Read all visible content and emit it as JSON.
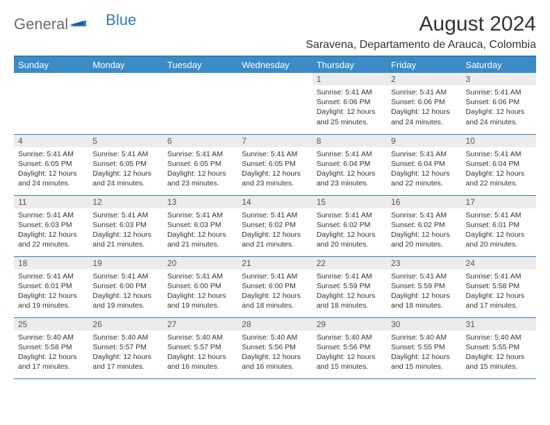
{
  "brand": {
    "general": "General",
    "blue": "Blue"
  },
  "title": "August 2024",
  "location": "Saravena, Departamento de Arauca, Colombia",
  "colors": {
    "header_bg": "#3b8bc6",
    "header_text": "#ffffff",
    "border": "#2f7bbf",
    "daynum_bg": "#ececec",
    "daynum_text": "#555555",
    "body_text": "#333333",
    "logo_gray": "#6d6d6d",
    "logo_blue": "#2f7bbf",
    "page_bg": "#ffffff"
  },
  "fonts": {
    "title_size_pt": 22,
    "location_size_pt": 12,
    "header_size_pt": 10,
    "daynum_size_pt": 9,
    "body_size_pt": 8
  },
  "weekdays": [
    "Sunday",
    "Monday",
    "Tuesday",
    "Wednesday",
    "Thursday",
    "Friday",
    "Saturday"
  ],
  "weeks": [
    [
      {
        "n": "",
        "sr": "",
        "ss": "",
        "dl": ""
      },
      {
        "n": "",
        "sr": "",
        "ss": "",
        "dl": ""
      },
      {
        "n": "",
        "sr": "",
        "ss": "",
        "dl": ""
      },
      {
        "n": "",
        "sr": "",
        "ss": "",
        "dl": ""
      },
      {
        "n": "1",
        "sr": "Sunrise: 5:41 AM",
        "ss": "Sunset: 6:06 PM",
        "dl": "Daylight: 12 hours and 25 minutes."
      },
      {
        "n": "2",
        "sr": "Sunrise: 5:41 AM",
        "ss": "Sunset: 6:06 PM",
        "dl": "Daylight: 12 hours and 24 minutes."
      },
      {
        "n": "3",
        "sr": "Sunrise: 5:41 AM",
        "ss": "Sunset: 6:06 PM",
        "dl": "Daylight: 12 hours and 24 minutes."
      }
    ],
    [
      {
        "n": "4",
        "sr": "Sunrise: 5:41 AM",
        "ss": "Sunset: 6:05 PM",
        "dl": "Daylight: 12 hours and 24 minutes."
      },
      {
        "n": "5",
        "sr": "Sunrise: 5:41 AM",
        "ss": "Sunset: 6:05 PM",
        "dl": "Daylight: 12 hours and 24 minutes."
      },
      {
        "n": "6",
        "sr": "Sunrise: 5:41 AM",
        "ss": "Sunset: 6:05 PM",
        "dl": "Daylight: 12 hours and 23 minutes."
      },
      {
        "n": "7",
        "sr": "Sunrise: 5:41 AM",
        "ss": "Sunset: 6:05 PM",
        "dl": "Daylight: 12 hours and 23 minutes."
      },
      {
        "n": "8",
        "sr": "Sunrise: 5:41 AM",
        "ss": "Sunset: 6:04 PM",
        "dl": "Daylight: 12 hours and 23 minutes."
      },
      {
        "n": "9",
        "sr": "Sunrise: 5:41 AM",
        "ss": "Sunset: 6:04 PM",
        "dl": "Daylight: 12 hours and 22 minutes."
      },
      {
        "n": "10",
        "sr": "Sunrise: 5:41 AM",
        "ss": "Sunset: 6:04 PM",
        "dl": "Daylight: 12 hours and 22 minutes."
      }
    ],
    [
      {
        "n": "11",
        "sr": "Sunrise: 5:41 AM",
        "ss": "Sunset: 6:03 PM",
        "dl": "Daylight: 12 hours and 22 minutes."
      },
      {
        "n": "12",
        "sr": "Sunrise: 5:41 AM",
        "ss": "Sunset: 6:03 PM",
        "dl": "Daylight: 12 hours and 21 minutes."
      },
      {
        "n": "13",
        "sr": "Sunrise: 5:41 AM",
        "ss": "Sunset: 6:03 PM",
        "dl": "Daylight: 12 hours and 21 minutes."
      },
      {
        "n": "14",
        "sr": "Sunrise: 5:41 AM",
        "ss": "Sunset: 6:02 PM",
        "dl": "Daylight: 12 hours and 21 minutes."
      },
      {
        "n": "15",
        "sr": "Sunrise: 5:41 AM",
        "ss": "Sunset: 6:02 PM",
        "dl": "Daylight: 12 hours and 20 minutes."
      },
      {
        "n": "16",
        "sr": "Sunrise: 5:41 AM",
        "ss": "Sunset: 6:02 PM",
        "dl": "Daylight: 12 hours and 20 minutes."
      },
      {
        "n": "17",
        "sr": "Sunrise: 5:41 AM",
        "ss": "Sunset: 6:01 PM",
        "dl": "Daylight: 12 hours and 20 minutes."
      }
    ],
    [
      {
        "n": "18",
        "sr": "Sunrise: 5:41 AM",
        "ss": "Sunset: 6:01 PM",
        "dl": "Daylight: 12 hours and 19 minutes."
      },
      {
        "n": "19",
        "sr": "Sunrise: 5:41 AM",
        "ss": "Sunset: 6:00 PM",
        "dl": "Daylight: 12 hours and 19 minutes."
      },
      {
        "n": "20",
        "sr": "Sunrise: 5:41 AM",
        "ss": "Sunset: 6:00 PM",
        "dl": "Daylight: 12 hours and 19 minutes."
      },
      {
        "n": "21",
        "sr": "Sunrise: 5:41 AM",
        "ss": "Sunset: 6:00 PM",
        "dl": "Daylight: 12 hours and 18 minutes."
      },
      {
        "n": "22",
        "sr": "Sunrise: 5:41 AM",
        "ss": "Sunset: 5:59 PM",
        "dl": "Daylight: 12 hours and 18 minutes."
      },
      {
        "n": "23",
        "sr": "Sunrise: 5:41 AM",
        "ss": "Sunset: 5:59 PM",
        "dl": "Daylight: 12 hours and 18 minutes."
      },
      {
        "n": "24",
        "sr": "Sunrise: 5:41 AM",
        "ss": "Sunset: 5:58 PM",
        "dl": "Daylight: 12 hours and 17 minutes."
      }
    ],
    [
      {
        "n": "25",
        "sr": "Sunrise: 5:40 AM",
        "ss": "Sunset: 5:58 PM",
        "dl": "Daylight: 12 hours and 17 minutes."
      },
      {
        "n": "26",
        "sr": "Sunrise: 5:40 AM",
        "ss": "Sunset: 5:57 PM",
        "dl": "Daylight: 12 hours and 17 minutes."
      },
      {
        "n": "27",
        "sr": "Sunrise: 5:40 AM",
        "ss": "Sunset: 5:57 PM",
        "dl": "Daylight: 12 hours and 16 minutes."
      },
      {
        "n": "28",
        "sr": "Sunrise: 5:40 AM",
        "ss": "Sunset: 5:56 PM",
        "dl": "Daylight: 12 hours and 16 minutes."
      },
      {
        "n": "29",
        "sr": "Sunrise: 5:40 AM",
        "ss": "Sunset: 5:56 PM",
        "dl": "Daylight: 12 hours and 15 minutes."
      },
      {
        "n": "30",
        "sr": "Sunrise: 5:40 AM",
        "ss": "Sunset: 5:55 PM",
        "dl": "Daylight: 12 hours and 15 minutes."
      },
      {
        "n": "31",
        "sr": "Sunrise: 5:40 AM",
        "ss": "Sunset: 5:55 PM",
        "dl": "Daylight: 12 hours and 15 minutes."
      }
    ]
  ]
}
